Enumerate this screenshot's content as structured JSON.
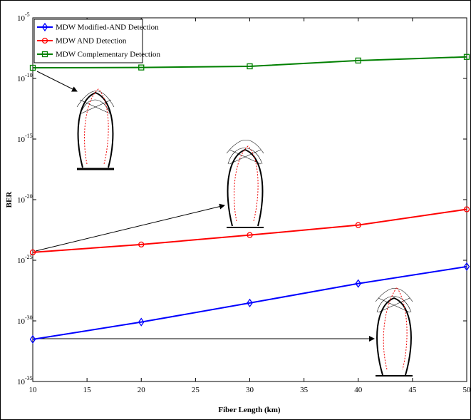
{
  "chart_data": {
    "type": "line",
    "xlabel": "Fiber Length (km)",
    "ylabel": "BER",
    "x": [
      10,
      20,
      30,
      40,
      50
    ],
    "series": [
      {
        "name": "MDW Modified-AND Detection",
        "color": "#0000ff",
        "marker": "diamond",
        "values": [
          3e-32,
          8e-31,
          3e-29,
          1.2e-27,
          3e-26
        ]
      },
      {
        "name": "MDW AND Detection",
        "color": "#ff0000",
        "marker": "circle",
        "values": [
          4.5e-25,
          2e-24,
          1.2e-23,
          8e-23,
          1.6e-21
        ]
      },
      {
        "name": "MDW Complementary Detection",
        "color": "#008000",
        "marker": "square",
        "values": [
          7.6e-10,
          8e-10,
          1e-09,
          3e-09,
          6e-09
        ]
      }
    ],
    "xlim": [
      10,
      50
    ],
    "xticks": [
      10,
      15,
      20,
      25,
      30,
      35,
      40,
      45,
      50
    ],
    "ylim": [
      1e-35,
      1e-05
    ],
    "log_y": true,
    "yticks": [
      {
        "value": 1e-35,
        "label": "10-35"
      },
      {
        "value": 1e-30,
        "label": "10-30"
      },
      {
        "value": 1e-25,
        "label": "10-25"
      },
      {
        "value": 1e-20,
        "label": "10-20"
      },
      {
        "value": 1e-15,
        "label": "10-15"
      },
      {
        "value": 1e-10,
        "label": "10-10"
      },
      {
        "value": 1e-05,
        "label": "10-5"
      }
    ],
    "legend": "upper left"
  }
}
